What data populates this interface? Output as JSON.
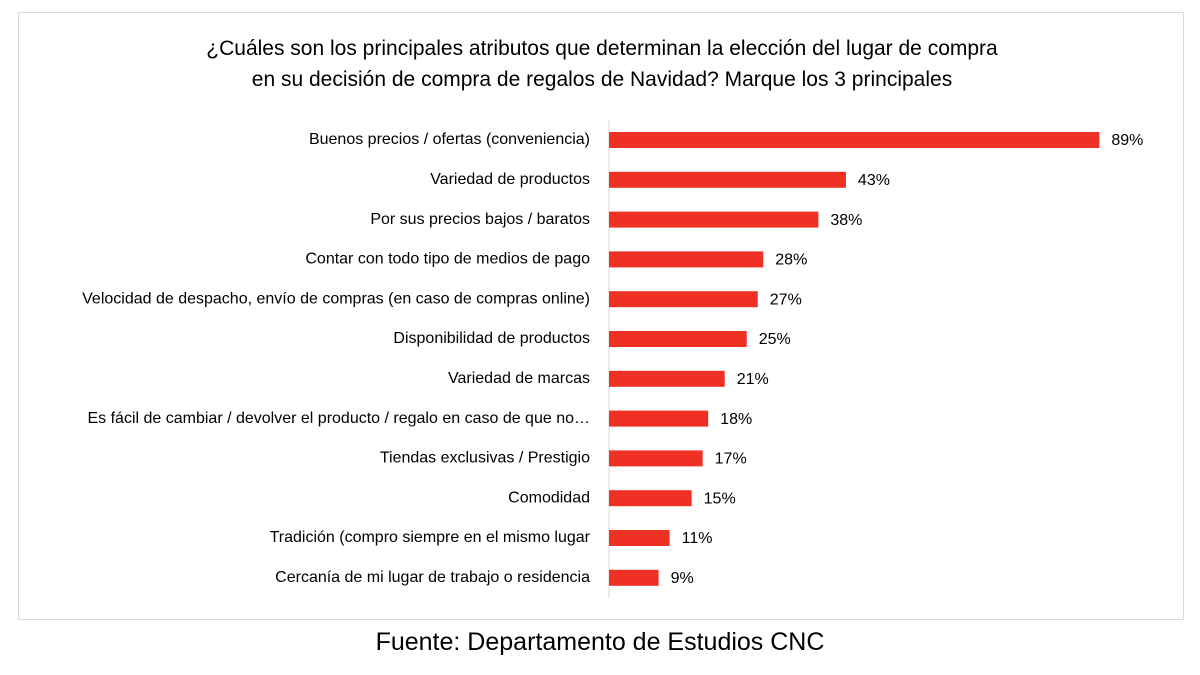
{
  "chart_data": {
    "type": "bar",
    "orientation": "horizontal",
    "title_lines": [
      "¿Cuáles son los principales atributos que determinan la elección del lugar de compra",
      "en su decisión de compra de regalos de Navidad? Marque los 3 principales"
    ],
    "categories": [
      "Buenos precios / ofertas (conveniencia)",
      "Variedad de productos",
      "Por sus precios bajos / baratos",
      "Contar con todo tipo de medios de pago",
      "Velocidad de despacho, envío de compras (en caso de compras online)",
      "Disponibilidad de productos",
      "Variedad de marcas",
      "Es fácil de cambiar / devolver el producto / regalo en caso de que no…",
      "Tiendas exclusivas / Prestigio",
      "Comodidad",
      "Tradición (compro siempre en el mismo lugar",
      "Cercanía de mi lugar de trabajo o residencia"
    ],
    "values": [
      89,
      43,
      38,
      28,
      27,
      25,
      21,
      18,
      17,
      15,
      11,
      9
    ],
    "value_labels": [
      "89%",
      "43%",
      "38%",
      "28%",
      "27%",
      "25%",
      "21%",
      "18%",
      "17%",
      "15%",
      "11%",
      "9%"
    ],
    "unit": "%",
    "xlim": [
      0,
      100
    ],
    "grid": false,
    "legend": "none",
    "colors": {
      "bar": "#ee3124",
      "axis": "#d9d9d9",
      "frame": "#d9d9d9"
    }
  },
  "source": "Fuente: Departamento de Estudios CNC"
}
